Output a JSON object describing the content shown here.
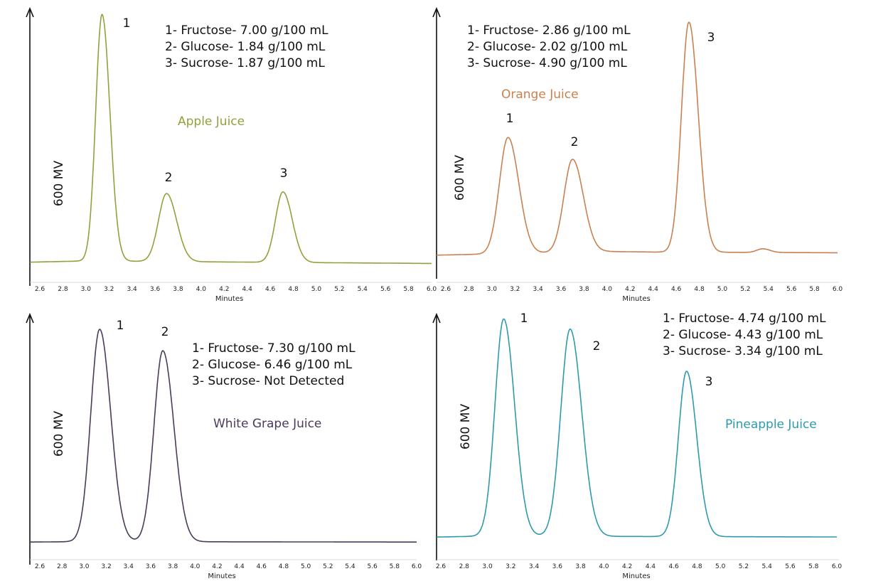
{
  "chart_data": [
    {
      "type": "line",
      "title": "Apple Juice",
      "color": "#8ea33c",
      "xlabel": "Minutes",
      "ylabel": "600 MV",
      "xlim": [
        2.5,
        6.0
      ],
      "ylim": [
        0,
        1000
      ],
      "xticks": [
        "2.6",
        "2.8",
        "3.0",
        "3.2",
        "3.4",
        "3.6",
        "3.8",
        "4.0",
        "4.2",
        "4.4",
        "4.6",
        "4.8",
        "5.0",
        "5.2",
        "5.4",
        "5.6",
        "5.8",
        "6.0"
      ],
      "info": [
        "1- Fructose- 7.00 g/100 mL",
        "2- Glucose- 1.84 g/100 mL",
        "3- Sucrose- 1.87 g/100 mL"
      ],
      "baseline": [
        [
          2.5,
          15
        ],
        [
          3.0,
          20
        ],
        [
          6.0,
          10
        ]
      ],
      "peaks": [
        {
          "label": "1",
          "center": 3.14,
          "height": 980,
          "width": 0.055
        },
        {
          "label": "2",
          "center": 3.7,
          "height": 270,
          "width": 0.07
        },
        {
          "label": "3",
          "center": 4.71,
          "height": 280,
          "width": 0.065
        }
      ]
    },
    {
      "type": "line",
      "title": "Orange Juice",
      "color": "#c8814f",
      "xlabel": "Minutes",
      "ylabel": "600 MV",
      "xlim": [
        2.5,
        6.0
      ],
      "ylim": [
        0,
        1000
      ],
      "xticks": [
        "2.6",
        "2.8",
        "3.0",
        "3.2",
        "3.4",
        "3.6",
        "3.8",
        "4.0",
        "4.2",
        "4.4",
        "4.6",
        "4.8",
        "5.0",
        "5.2",
        "5.4",
        "5.6",
        "5.8",
        "6.0"
      ],
      "info": [
        "1- Fructose- 2.86 g/100 mL",
        "2- Glucose- 2.02 g/100 mL",
        "3- Sucrose- 4.90 g/100 mL"
      ],
      "baseline": [
        [
          2.5,
          15
        ],
        [
          4.0,
          30
        ],
        [
          4.4,
          28
        ],
        [
          6.0,
          25
        ]
      ],
      "peaks": [
        {
          "label": "1",
          "center": 3.14,
          "height": 475,
          "width": 0.075
        },
        {
          "label": "2",
          "center": 3.7,
          "height": 380,
          "width": 0.075
        },
        {
          "label": "3",
          "center": 4.71,
          "height": 940,
          "width": 0.065
        },
        {
          "label": "",
          "center": 5.35,
          "height": 15,
          "width": 0.05
        }
      ]
    },
    {
      "type": "line",
      "title": "White Grape Juice",
      "color": "#4b3a5c",
      "xlabel": "Minutes",
      "ylabel": "600 MV",
      "xlim": [
        2.5,
        6.0
      ],
      "ylim": [
        0,
        1000
      ],
      "xticks": [
        "2.6",
        "2.8",
        "3.0",
        "3.2",
        "3.4",
        "3.6",
        "3.8",
        "4.0",
        "4.2",
        "4.4",
        "4.6",
        "4.8",
        "5.0",
        "5.2",
        "5.4",
        "5.6",
        "5.8",
        "6.0"
      ],
      "info": [
        "1- Fructose- 7.30 g/100 mL",
        "2- Glucose- 6.46 g/100 mL",
        "3- Sucrose- Not Detected"
      ],
      "baseline": [
        [
          2.5,
          12
        ],
        [
          3.0,
          14
        ],
        [
          6.0,
          12
        ]
      ],
      "peaks": [
        {
          "label": "1",
          "center": 3.14,
          "height": 945,
          "width": 0.08
        },
        {
          "label": "2",
          "center": 3.71,
          "height": 850,
          "width": 0.08
        }
      ]
    },
    {
      "type": "line",
      "title": "Pineapple Juice",
      "color": "#2e9aad",
      "xlabel": "Minutes",
      "ylabel": "600 MV",
      "xlim": [
        2.5,
        6.0
      ],
      "ylim": [
        0,
        1000
      ],
      "xticks": [
        "2.6",
        "2.8",
        "3.0",
        "3.2",
        "3.4",
        "3.6",
        "3.8",
        "4.0",
        "4.2",
        "4.4",
        "4.6",
        "4.8",
        "5.0",
        "5.2",
        "5.4",
        "5.6",
        "5.8",
        "6.0"
      ],
      "info": [
        "1- Fructose- 4.74 g/100 mL",
        "2- Glucose- 4.43 g/100 mL",
        "3- Sucrose- 3.34 g/100 mL"
      ],
      "baseline": [
        [
          2.5,
          15
        ],
        [
          3.0,
          20
        ],
        [
          6.0,
          16
        ]
      ],
      "peaks": [
        {
          "label": "1",
          "center": 3.14,
          "height": 985,
          "width": 0.075
        },
        {
          "label": "2",
          "center": 3.71,
          "height": 940,
          "width": 0.08
        },
        {
          "label": "3",
          "center": 4.71,
          "height": 750,
          "width": 0.07
        }
      ]
    }
  ]
}
